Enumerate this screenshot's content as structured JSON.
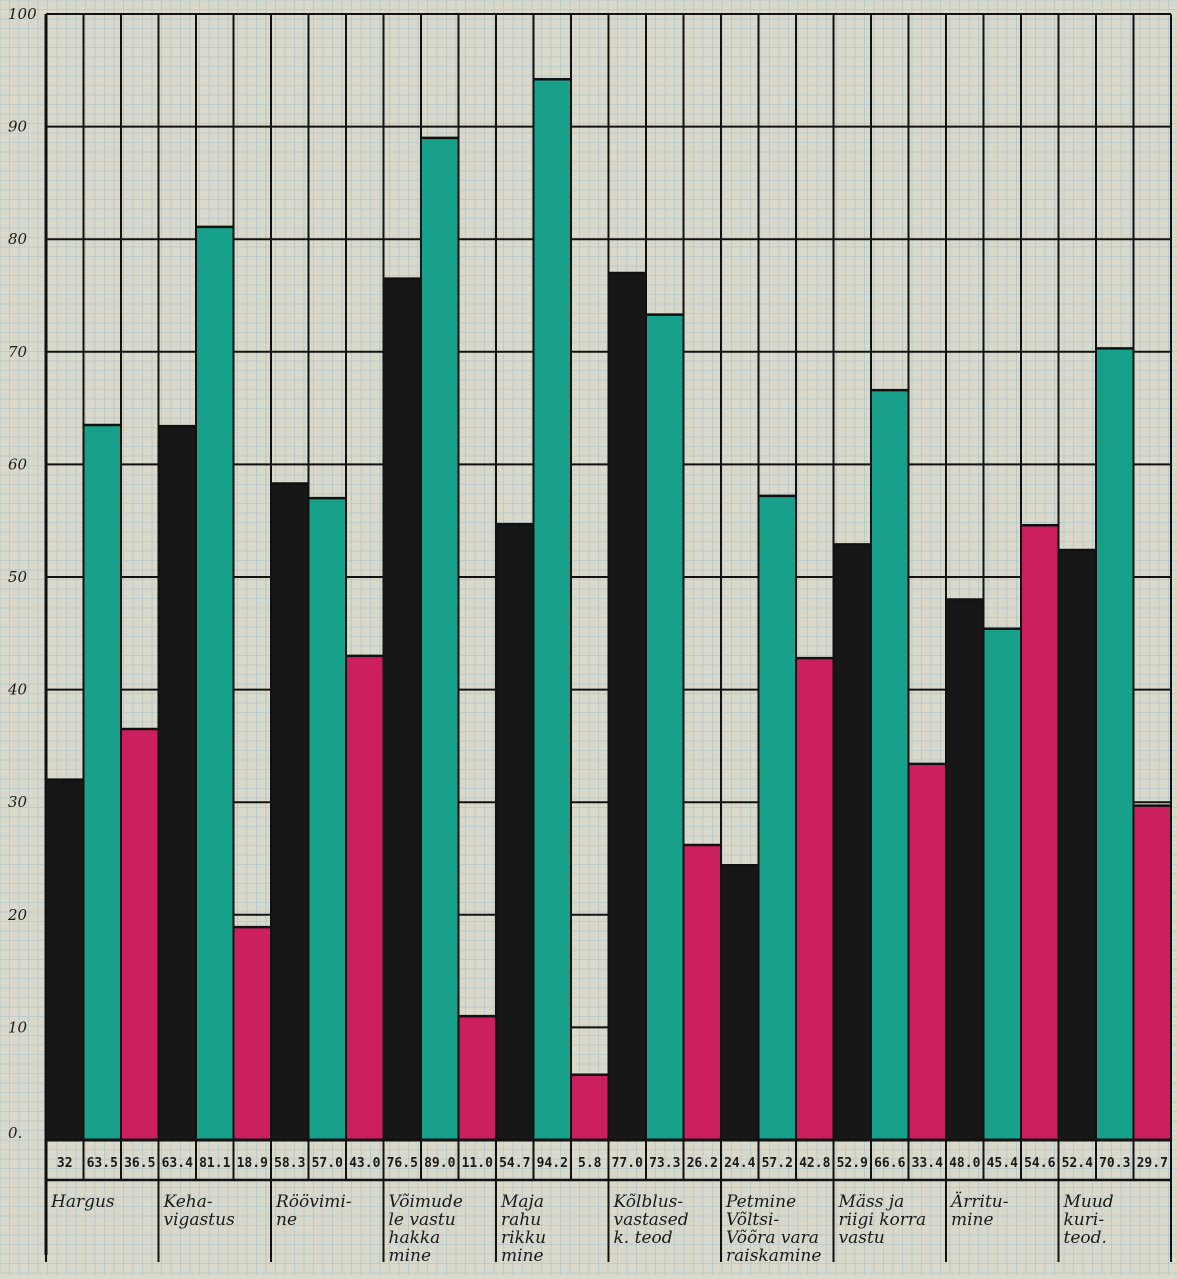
{
  "colors": {
    "paper": "#d9d8c9",
    "minor_grid": "#9fc4d1",
    "major_grid": "#111111",
    "series": [
      "#171717",
      "#17a08a",
      "#cc1f5f"
    ]
  },
  "chart_data": {
    "type": "bar",
    "title": "",
    "xlabel": "",
    "ylabel": "",
    "ylim": [
      0,
      100
    ],
    "yticks": [
      "0.",
      "10",
      "20",
      "30",
      "40",
      "50",
      "60",
      "70",
      "80",
      "90",
      "100"
    ],
    "grid": true,
    "categories": [
      [
        "Hargus"
      ],
      [
        "Keha-",
        "vigastus"
      ],
      [
        "Röövimi-",
        "ne"
      ],
      [
        "Võimude",
        "le vastu",
        "hakka",
        "mine"
      ],
      [
        "Maja",
        "rahu",
        "rikku",
        "mine"
      ],
      [
        "Kõlblus-",
        "vastased",
        "k. teod"
      ],
      [
        "Petmine",
        "Võltsi-",
        "Võõra vara",
        "raiskamine"
      ],
      [
        "Mäss ja",
        "riigi korra",
        "vastu"
      ],
      [
        "Ärritu-",
        "mine"
      ],
      [
        "Muud",
        "kuri-",
        "teod."
      ]
    ],
    "series": [
      {
        "values": [
          32,
          63.4,
          58.3,
          76.5,
          54.7,
          77.0,
          24.4,
          52.9,
          48.0,
          52.4
        ]
      },
      {
        "values": [
          63.5,
          81.1,
          57.0,
          89.0,
          94.2,
          73.3,
          57.2,
          66.6,
          45.4,
          70.3
        ]
      },
      {
        "values": [
          36.5,
          18.9,
          43.0,
          11.0,
          5.8,
          26.2,
          42.8,
          33.4,
          54.6,
          29.7
        ]
      }
    ],
    "value_labels": [
      [
        "32",
        "63.5",
        "36.5"
      ],
      [
        "63.4",
        "81.1",
        "18.9"
      ],
      [
        "58.3",
        "57.0",
        "43.0"
      ],
      [
        "76.5",
        "89.0",
        "11.0"
      ],
      [
        "54.7",
        "94.2",
        "5.8"
      ],
      [
        "77.0",
        "73.3",
        "26.2"
      ],
      [
        "24.4",
        "57.2",
        "42.8"
      ],
      [
        "52.9",
        "66.6",
        "33.4"
      ],
      [
        "48.0",
        "45.4",
        "54.6"
      ],
      [
        "52.4",
        "70.3",
        "29.7"
      ]
    ]
  }
}
